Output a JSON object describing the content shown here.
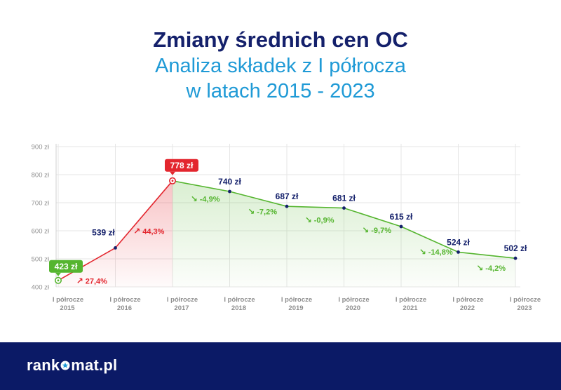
{
  "title": {
    "line1": "Zmiany średnich cen OC",
    "line2": "Analiza składek z I półrocza",
    "line3": "w latach 2015 - 2023"
  },
  "chart_data": {
    "type": "line",
    "categories": [
      [
        "I półrocze",
        "2015"
      ],
      [
        "I półrocze",
        "2016"
      ],
      [
        "I półrocze",
        "2017"
      ],
      [
        "I półrocze",
        "2018"
      ],
      [
        "I półrocze",
        "2019"
      ],
      [
        "I półrocze",
        "2020"
      ],
      [
        "I półrocze",
        "2021"
      ],
      [
        "I półrocze",
        "2022"
      ],
      [
        "I półrocze",
        "2023"
      ]
    ],
    "values": [
      423,
      539,
      778,
      740,
      687,
      681,
      615,
      524,
      502
    ],
    "value_labels": [
      "423 zł",
      "539 zł",
      "778 zł",
      "740 zł",
      "687 zł",
      "681 zł",
      "615 zł",
      "524 zł",
      "502 zł"
    ],
    "changes": [
      "27,4%",
      "44,3%",
      "-4,9%",
      "-7,2%",
      "-0,9%",
      "-9,7%",
      "-14,8%",
      "-4,2%"
    ],
    "y_ticks": [
      "400 zł",
      "500 zł",
      "600 zł",
      "700 zł",
      "800 zł",
      "900 zł"
    ],
    "ylim": [
      400,
      900
    ],
    "highlight_min_index": 0,
    "highlight_max_index": 2,
    "grid": true,
    "colors": {
      "rise": "#e3262e",
      "fall": "#55b52f",
      "label": "#14206b",
      "axis_text": "#8f8f8f",
      "grid": "#e6e6e6"
    }
  },
  "footer": {
    "logo_left": "rank",
    "logo_icon": "star-icon",
    "logo_right": "mat.pl"
  }
}
